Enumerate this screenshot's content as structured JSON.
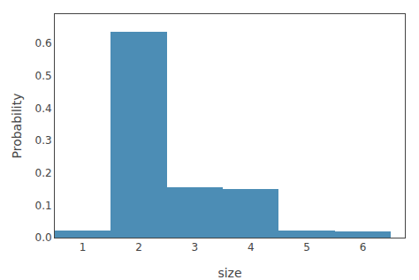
{
  "chart_data": {
    "type": "bar",
    "xlabel": "size",
    "ylabel": "Probability",
    "x": [
      1,
      2,
      3,
      4,
      5,
      6
    ],
    "values": [
      0.021,
      0.636,
      0.155,
      0.149,
      0.022,
      0.018
    ],
    "color": "#4c8db5",
    "xlim": [
      0.5,
      6.75
    ],
    "xticks": [
      1,
      2,
      3,
      4,
      5,
      6
    ],
    "ylim": [
      0.0,
      0.69
    ],
    "yticks": [
      {
        "value": 0.0,
        "label": "0.0"
      },
      0.1,
      0.2,
      0.3,
      0.4,
      0.5,
      0.6
    ],
    "grid": false
  }
}
